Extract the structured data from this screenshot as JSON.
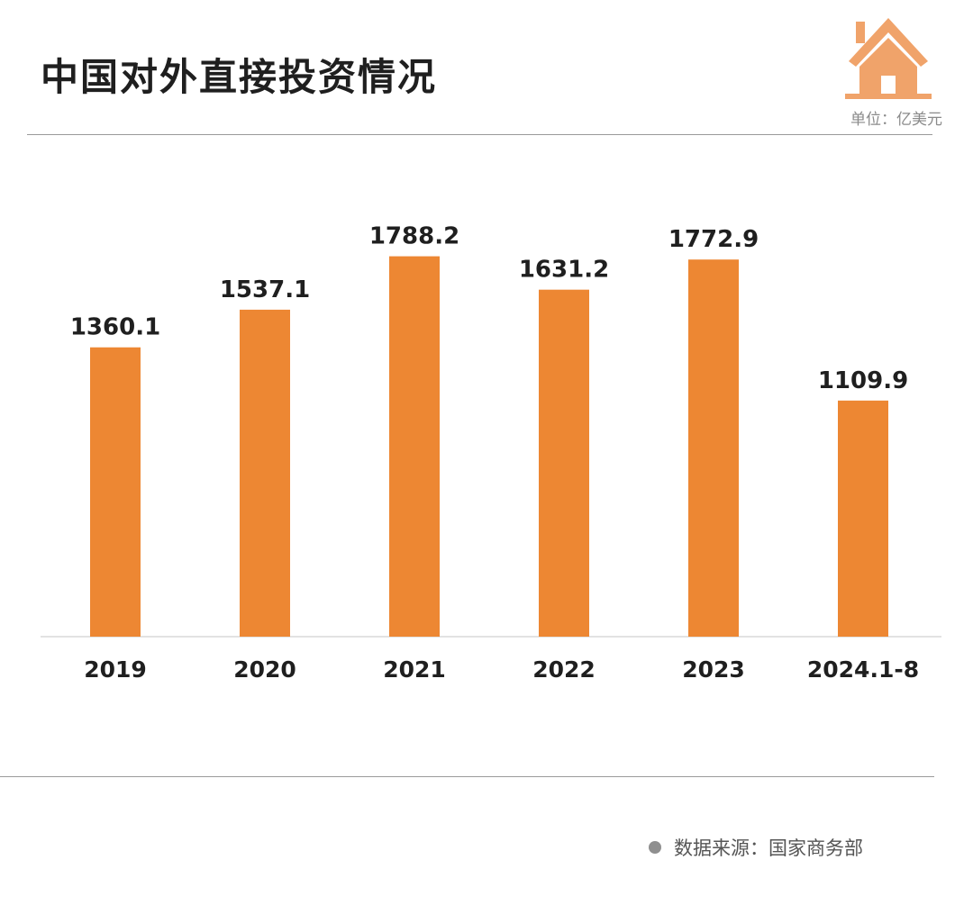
{
  "title": "中国对外直接投资情况",
  "unit_label": "单位：亿美元",
  "source_label": "数据来源：国家商务部",
  "colors": {
    "bar": "#ED8733",
    "logo": "#F0A36A"
  },
  "chart_data": {
    "type": "bar",
    "categories": [
      "2019",
      "2020",
      "2021",
      "2022",
      "2023",
      "2024.1-8"
    ],
    "values": [
      1360.1,
      1537.1,
      1788.2,
      1631.2,
      1772.9,
      1109.9
    ],
    "value_labels": [
      "1360.1",
      "1537.1",
      "1788.2",
      "1631.2",
      "1772.9",
      "1109.9"
    ],
    "title": "中国对外直接投资情况",
    "unit": "亿美元",
    "ylim": [
      0,
      1850
    ],
    "legend": "none",
    "grid": false
  }
}
